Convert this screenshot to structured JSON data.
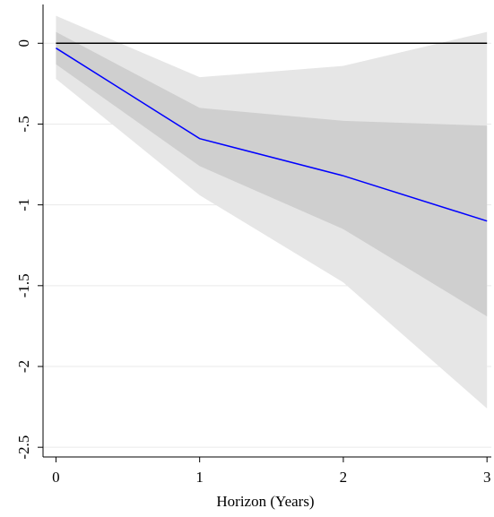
{
  "chart_data": {
    "type": "line",
    "xlabel": "Horizon (Years)",
    "x": [
      0,
      1,
      2,
      3
    ],
    "xlim": [
      -0.09,
      3.03
    ],
    "xticks": [
      0,
      1,
      2,
      3
    ],
    "ylim": [
      -2.56,
      0.24
    ],
    "yticks": [
      0,
      {
        "value": -0.5,
        "label": "-.5"
      },
      -1,
      -1.5,
      -2,
      -2.5
    ],
    "grid": true,
    "reference_line": {
      "value": 0,
      "color": "#000000"
    },
    "bands": [
      {
        "color": "#e6e6e6",
        "upper": [
          0.17,
          -0.21,
          -0.14,
          0.07
        ],
        "lower": [
          -0.22,
          -0.94,
          -1.48,
          -2.26
        ]
      },
      {
        "color": "#cfcfcf",
        "upper": [
          0.07,
          -0.4,
          -0.48,
          -0.51
        ],
        "lower": [
          -0.13,
          -0.76,
          -1.15,
          -1.69
        ]
      }
    ],
    "line": {
      "color": "#0000ff",
      "values": [
        -0.03,
        -0.59,
        -0.82,
        -1.1
      ]
    }
  }
}
